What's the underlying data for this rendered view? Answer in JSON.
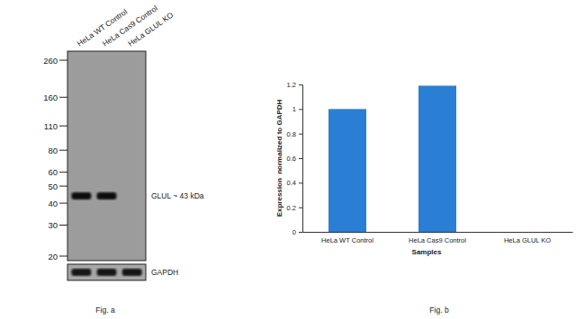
{
  "blot": {
    "caption": "Fig. a",
    "lanes": [
      "HeLa WT Control",
      "HeLa Cas9 Control",
      "HeLa GLUL KO"
    ],
    "markers": [
      260,
      160,
      110,
      80,
      60,
      50,
      40,
      30,
      20
    ],
    "band_label": "GLUL ~ 43 kDa",
    "loading_label": "GAPDH"
  },
  "chart_data": {
    "type": "bar",
    "caption": "Fig. b",
    "categories": [
      "HeLa WT Control",
      "HeLa Cas9 Control",
      "HeLa GLUL KO"
    ],
    "values": [
      1,
      1.19,
      0
    ],
    "color": "#2a7fd4",
    "x_label": "Samples",
    "y_label": "Expression  normalized to GAPDH",
    "ylim": [
      0,
      1.2
    ],
    "yticks": [
      0,
      0.2,
      0.4,
      0.6,
      0.8,
      1,
      1.2
    ]
  }
}
